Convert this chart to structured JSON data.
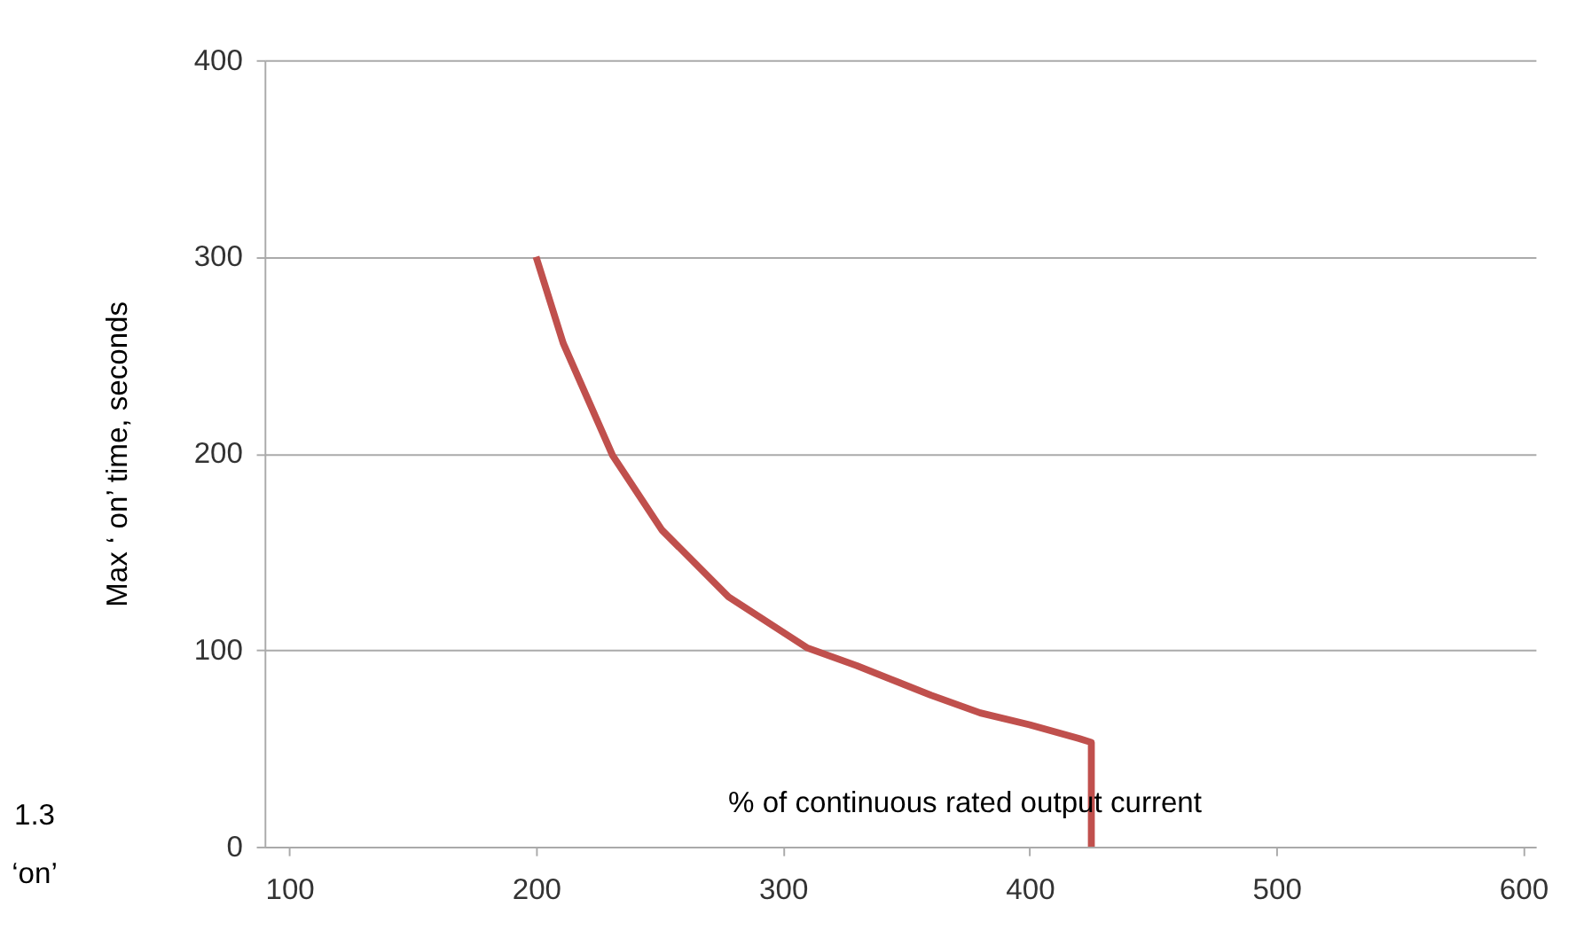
{
  "chart_data": {
    "type": "line",
    "xlabel": "% of continuous rated output current",
    "ylabel": "Max ‘ on’ time, seconds",
    "x": [
      200,
      211,
      231,
      251,
      278,
      310,
      330,
      360,
      380,
      400,
      420,
      425,
      425
    ],
    "series": [
      {
        "color": "#c0504d",
        "values": [
          300,
          256,
          199,
          161,
          127,
          101,
          92,
          77,
          68,
          62,
          55,
          53,
          0
        ]
      }
    ],
    "xlim": [
      90,
      605
    ],
    "xticks": [
      100,
      200,
      300,
      400,
      500,
      600
    ],
    "ylim": [
      0,
      400
    ],
    "yticks": [
      0,
      100,
      200,
      300,
      400
    ],
    "grid": "y",
    "marker": "none",
    "line_style": "solid",
    "annotations": [
      "1.3",
      "‘on’"
    ]
  }
}
